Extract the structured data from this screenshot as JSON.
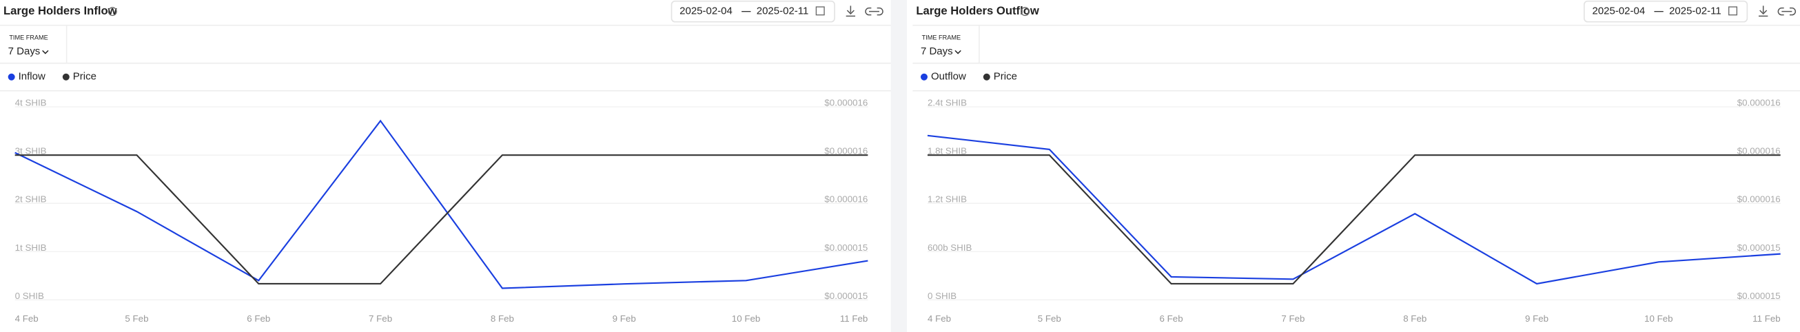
{
  "chart_data": [
    {
      "type": "line",
      "title": "Large Holders Inflow",
      "date_start": "2025-02-04",
      "date_end": "2025-02-11",
      "time_frame_label": "TIME FRAME",
      "time_frame": "7 Days",
      "categories": [
        "4 Feb",
        "5 Feb",
        "6 Feb",
        "7 Feb",
        "8 Feb",
        "9 Feb",
        "10 Feb",
        "11 Feb"
      ],
      "series": [
        {
          "name": "Inflow",
          "color": "#1a3fe0",
          "values": [
            3.05,
            1.83,
            0.4,
            3.71,
            0.24,
            0.33,
            0.4,
            0.81
          ]
        },
        {
          "name": "Price",
          "color": "#333333",
          "axis": "y2",
          "values": [
            1.59e-05,
            1.59e-05,
            1.51e-05,
            1.51e-05,
            1.59e-05,
            1.59e-05,
            1.59e-05,
            1.59e-05
          ]
        }
      ],
      "ylim": [
        0,
        4
      ],
      "yticks": [
        {
          "value": 0,
          "label": "0 SHIB"
        },
        {
          "value": 1,
          "label": "1t SHIB"
        },
        {
          "value": 2,
          "label": "2t SHIB"
        },
        {
          "value": 3,
          "label": "3t SHIB"
        },
        {
          "value": 4,
          "label": "4t SHIB"
        }
      ],
      "y2lim": [
        1.5e-05,
        1.62e-05
      ],
      "y2ticks": [
        {
          "value": 1.5e-05,
          "label": "$0.000015"
        },
        {
          "value": 1.53e-05,
          "label": "$0.000015"
        },
        {
          "value": 1.56e-05,
          "label": "$0.000016"
        },
        {
          "value": 1.59e-05,
          "label": "$0.000016"
        },
        {
          "value": 1.62e-05,
          "label": "$0.000016"
        }
      ],
      "grid": true
    },
    {
      "type": "line",
      "title": "Large Holders Outflow",
      "date_start": "2025-02-04",
      "date_end": "2025-02-11",
      "time_frame_label": "TIME FRAME",
      "time_frame": "7 Days",
      "categories": [
        "4 Feb",
        "5 Feb",
        "6 Feb",
        "7 Feb",
        "8 Feb",
        "9 Feb",
        "10 Feb",
        "11 Feb"
      ],
      "series": [
        {
          "name": "Outflow",
          "color": "#1a3fe0",
          "values": [
            2043,
            1871,
            286,
            257,
            1071,
            200,
            471,
            571
          ]
        },
        {
          "name": "Price",
          "color": "#333333",
          "axis": "y2",
          "values": [
            1.59e-05,
            1.59e-05,
            1.51e-05,
            1.51e-05,
            1.59e-05,
            1.59e-05,
            1.59e-05,
            1.59e-05
          ]
        }
      ],
      "ylim": [
        0,
        2400
      ],
      "yticks": [
        {
          "value": 0,
          "label": "0 SHIB"
        },
        {
          "value": 600,
          "label": "600b SHIB"
        },
        {
          "value": 1200,
          "label": "1.2t SHIB"
        },
        {
          "value": 1800,
          "label": "1.8t SHIB"
        },
        {
          "value": 2400,
          "label": "2.4t SHIB"
        }
      ],
      "y2lim": [
        1.5e-05,
        1.62e-05
      ],
      "y2ticks": [
        {
          "value": 1.5e-05,
          "label": "$0.000015"
        },
        {
          "value": 1.53e-05,
          "label": "$0.000015"
        },
        {
          "value": 1.56e-05,
          "label": "$0.000016"
        },
        {
          "value": 1.59e-05,
          "label": "$0.000016"
        },
        {
          "value": 1.62e-05,
          "label": "$0.000016"
        }
      ],
      "grid": true
    }
  ]
}
